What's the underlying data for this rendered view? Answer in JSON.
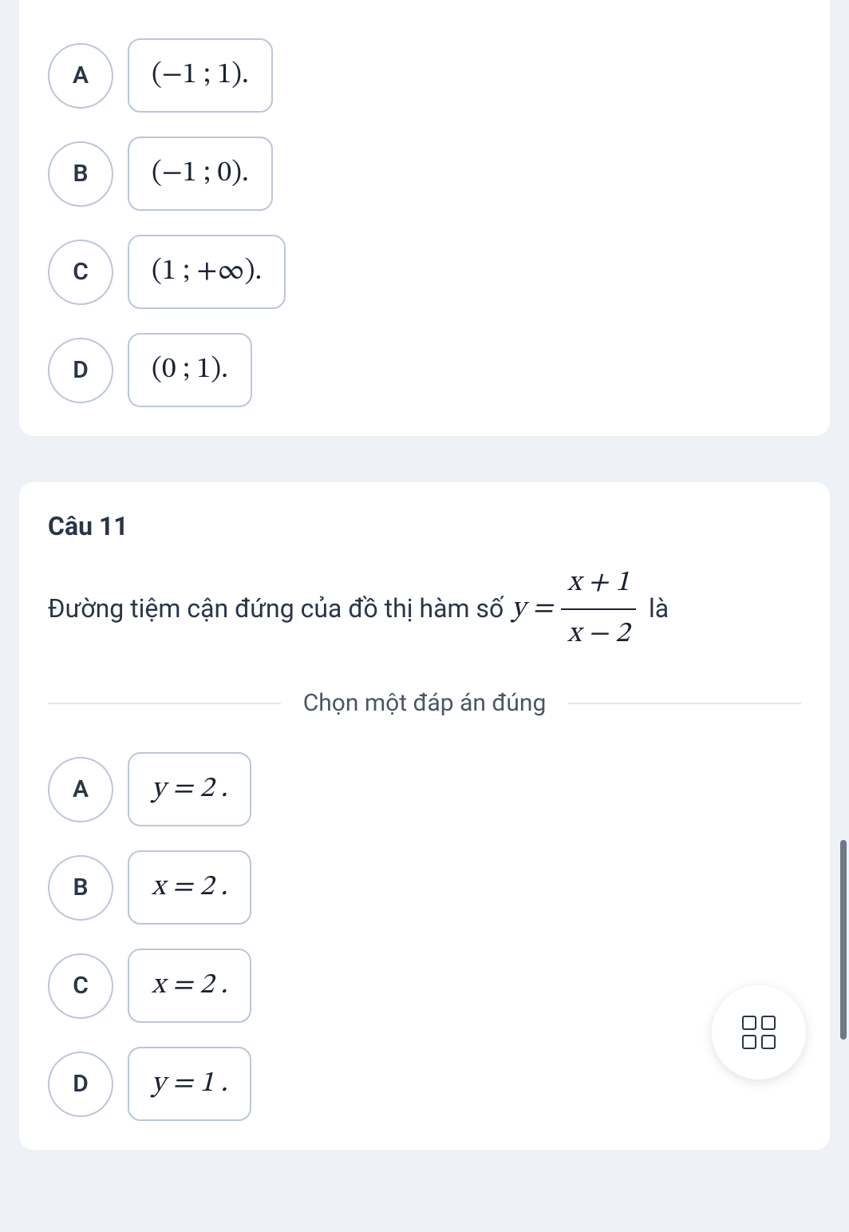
{
  "colors": {
    "page_bg": "#eef1f6",
    "card_bg": "#ffffff",
    "border": "#bcc6d9",
    "text_primary": "#2a3547",
    "math_text": "#1a2233",
    "divider": "#e2e6ef",
    "scrollbar": "#6f7887"
  },
  "question10": {
    "options": [
      {
        "letter": "A",
        "math": "(−1 ; 1)."
      },
      {
        "letter": "B",
        "math": "(−1 ; 0)."
      },
      {
        "letter": "C",
        "math": "(1 ; +∞)."
      },
      {
        "letter": "D",
        "math": "(0 ; 1)."
      }
    ]
  },
  "question11": {
    "title": "Câu 11",
    "text_before": "Đường tiệm cận đứng của đồ thị hàm số ",
    "equation_lhs": "y =",
    "fraction": {
      "num": "x + 1",
      "den": "x − 2"
    },
    "text_after": " là",
    "divider_label": "Chọn một đáp án đúng",
    "options": [
      {
        "letter": "A",
        "math": "y = 2 ."
      },
      {
        "letter": "B",
        "math": "x = 2 ."
      },
      {
        "letter": "C",
        "math": "x = 2 ."
      },
      {
        "letter": "D",
        "math": "y = 1 ."
      }
    ]
  }
}
